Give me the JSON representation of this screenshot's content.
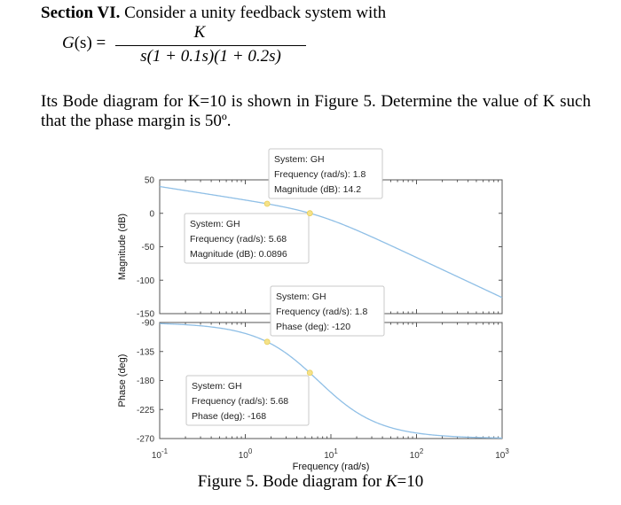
{
  "section": {
    "bold": "Section VI.",
    "rest": " Consider a unity feedback system with"
  },
  "equation": {
    "lhs_name": "G",
    "lhs_arg": "(s) =",
    "numerator": "K",
    "denominator": "s(1 + 0.1s)(1 + 0.2s)"
  },
  "paragraph": "Its Bode diagram for K=10 is shown in Figure 5. Determine the value of K such that the phase margin is 50º.",
  "caption": {
    "text": "Figure 5. Bode diagram for ",
    "italic": "K",
    "tail": "=10"
  },
  "colors": {
    "curve": "#8fbfe6",
    "axis": "#555555",
    "datatip_marker": "#f5e28a"
  },
  "chart_data": [
    {
      "type": "line",
      "xscale": "log",
      "xlim": [
        0.1,
        1000
      ],
      "ylim": [
        -150,
        50
      ],
      "yticks": [
        50,
        0,
        -50,
        -100,
        -150
      ],
      "ylabel": "Magnitude (dB)",
      "series": [
        {
          "name": "GH",
          "model": "K/(s(1+0.1s)(1+0.2s)), K=10"
        }
      ],
      "datatips": [
        {
          "system": "System: GH",
          "freq_label": "Frequency (rad/s): 1.8",
          "val_label": "Magnitude (dB): 14.2",
          "x": 1.8,
          "y": 14.2
        },
        {
          "system": "System: GH",
          "freq_label": "Frequency (rad/s): 5.68",
          "val_label": "Magnitude (dB): 0.0896",
          "x": 5.68,
          "y": 0.0896
        }
      ]
    },
    {
      "type": "line",
      "xscale": "log",
      "xlim": [
        0.1,
        1000
      ],
      "ylim": [
        -270,
        -90
      ],
      "yticks": [
        -90,
        -135,
        -180,
        -225,
        -270
      ],
      "ylabel": "Phase (deg)",
      "xlabel": "Frequency  (rad/s)",
      "xticks": [
        {
          "base": "10",
          "exp": "-1",
          "value": 0.1
        },
        {
          "base": "10",
          "exp": "0",
          "value": 1
        },
        {
          "base": "10",
          "exp": "1",
          "value": 10
        },
        {
          "base": "10",
          "exp": "2",
          "value": 100
        },
        {
          "base": "10",
          "exp": "3",
          "value": 1000
        }
      ],
      "series": [
        {
          "name": "GH",
          "model": "phase of K/(s(1+0.1s)(1+0.2s))"
        }
      ],
      "datatips": [
        {
          "system": "System: GH",
          "freq_label": "Frequency (rad/s): 1.8",
          "val_label": "Phase (deg): -120",
          "x": 1.8,
          "y": -120
        },
        {
          "system": "System: GH",
          "freq_label": "Frequency (rad/s): 5.68",
          "val_label": "Phase (deg): -168",
          "x": 5.68,
          "y": -168
        }
      ]
    }
  ]
}
